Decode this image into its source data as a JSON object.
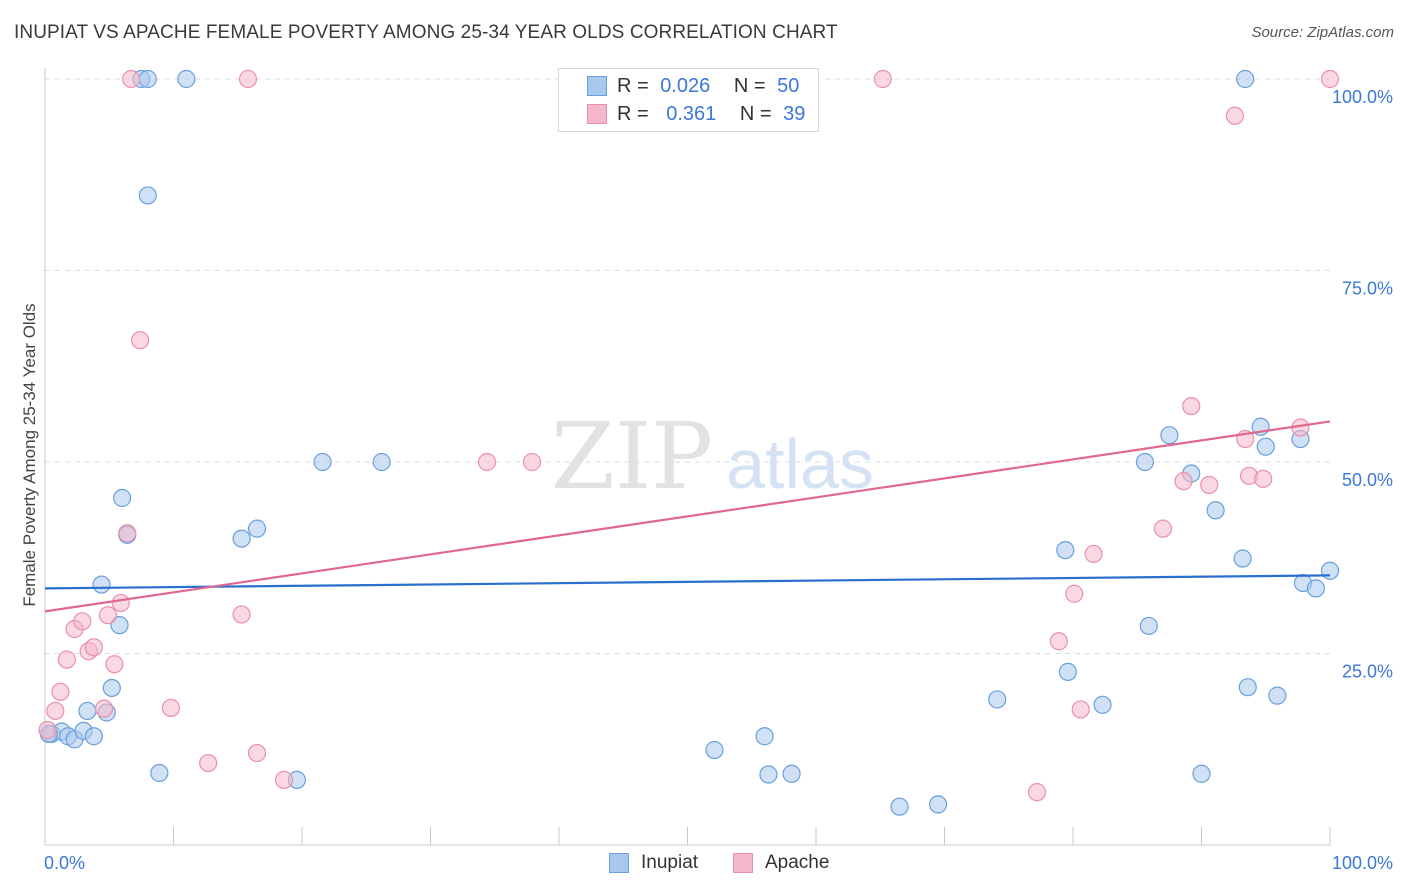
{
  "title": "INUPIAT VS APACHE FEMALE POVERTY AMONG 25-34 YEAR OLDS CORRELATION CHART",
  "source": "Source: ZipAtlas.com",
  "watermark": {
    "zip": "ZIP",
    "atlas": "atlas"
  },
  "legend_top": {
    "rows": [
      {
        "r_label": "R =",
        "r_value": "0.026",
        "n_label": "N =",
        "n_value": "50",
        "color": "#a9c8ef"
      },
      {
        "r_label": "R =",
        "r_value": "0.361",
        "n_label": "N =",
        "n_value": "39",
        "color": "#f5b8cb"
      }
    ]
  },
  "legend_bottom": [
    {
      "label": "Inupiat",
      "color": "#a9c8ef"
    },
    {
      "label": "Apache",
      "color": "#f5b8cb"
    }
  ],
  "chart_data": {
    "type": "scatter",
    "title": "INUPIAT VS APACHE FEMALE POVERTY AMONG 25-34 YEAR OLDS CORRELATION CHART",
    "xlabel": "",
    "ylabel": "Female Poverty Among 25-34 Year Olds",
    "xlim": [
      0,
      100
    ],
    "ylim": [
      0,
      100
    ],
    "x_tick_labels": [
      "0.0%",
      "100.0%"
    ],
    "y_tick_labels": [
      "25.0%",
      "50.0%",
      "75.0%",
      "100.0%"
    ],
    "y_ticks": [
      25,
      50,
      75,
      100
    ],
    "grid": true,
    "legend_position": "top-center",
    "colors": {
      "inupiat_fill": "#a9c8ef",
      "inupiat_edge": "#6a9fdc",
      "inupiat_line": "#2a6fd0",
      "apache_fill": "#f5b8cb",
      "apache_edge": "#e890ad",
      "apache_line": "#e0688f",
      "axis_label": "#3b78d8"
    },
    "series": [
      {
        "name": "Inupiat",
        "trend": {
          "x": [
            0,
            100
          ],
          "y": [
            33.5,
            35.2
          ]
        },
        "points": [
          [
            0.5,
            14.5
          ],
          [
            1.3,
            14.8
          ],
          [
            1.8,
            14.2
          ],
          [
            2.3,
            13.8
          ],
          [
            3.0,
            14.9
          ],
          [
            3.3,
            17.5
          ],
          [
            3.8,
            14.2
          ],
          [
            4.4,
            34.0
          ],
          [
            4.8,
            17.3
          ],
          [
            5.2,
            20.5
          ],
          [
            5.8,
            28.7
          ],
          [
            6.0,
            45.3
          ],
          [
            6.4,
            40.5
          ],
          [
            7.5,
            100.0
          ],
          [
            8.0,
            100.0
          ],
          [
            8.0,
            84.8
          ],
          [
            8.9,
            9.4
          ],
          [
            11.0,
            100.0
          ],
          [
            15.3,
            40.0
          ],
          [
            16.5,
            41.3
          ],
          [
            19.6,
            8.5
          ],
          [
            21.6,
            50.0
          ],
          [
            26.2,
            50.0
          ],
          [
            52.1,
            12.4
          ],
          [
            56.0,
            14.2
          ],
          [
            56.3,
            9.2
          ],
          [
            58.1,
            9.3
          ],
          [
            66.5,
            5.0
          ],
          [
            69.5,
            5.3
          ],
          [
            74.1,
            19.0
          ],
          [
            79.4,
            38.5
          ],
          [
            79.6,
            22.6
          ],
          [
            82.3,
            18.3
          ],
          [
            85.6,
            50.0
          ],
          [
            85.9,
            28.6
          ],
          [
            87.5,
            53.5
          ],
          [
            89.2,
            48.5
          ],
          [
            90.0,
            9.3
          ],
          [
            91.1,
            43.7
          ],
          [
            93.2,
            37.4
          ],
          [
            93.4,
            100.0
          ],
          [
            93.6,
            20.6
          ],
          [
            94.6,
            54.6
          ],
          [
            95.0,
            52.0
          ],
          [
            95.9,
            19.5
          ],
          [
            97.7,
            53.0
          ],
          [
            97.9,
            34.2
          ],
          [
            98.9,
            33.5
          ],
          [
            100.0,
            35.8
          ],
          [
            0.3,
            14.5
          ]
        ]
      },
      {
        "name": "Apache",
        "trend": {
          "x": [
            0,
            100
          ],
          "y": [
            30.5,
            55.3
          ]
        },
        "points": [
          [
            0.2,
            15.0
          ],
          [
            0.8,
            17.5
          ],
          [
            1.2,
            20.0
          ],
          [
            1.7,
            24.2
          ],
          [
            2.3,
            28.2
          ],
          [
            2.9,
            29.2
          ],
          [
            3.4,
            25.3
          ],
          [
            3.8,
            25.8
          ],
          [
            4.6,
            17.8
          ],
          [
            4.9,
            30.0
          ],
          [
            5.4,
            23.6
          ],
          [
            5.9,
            31.6
          ],
          [
            6.4,
            40.7
          ],
          [
            6.7,
            100.0
          ],
          [
            7.4,
            65.9
          ],
          [
            9.8,
            17.9
          ],
          [
            12.7,
            10.7
          ],
          [
            15.3,
            30.1
          ],
          [
            15.8,
            100.0
          ],
          [
            16.5,
            12.0
          ],
          [
            18.6,
            8.5
          ],
          [
            34.4,
            50.0
          ],
          [
            37.9,
            50.0
          ],
          [
            65.2,
            100.0
          ],
          [
            77.2,
            6.9
          ],
          [
            78.9,
            26.6
          ],
          [
            80.1,
            32.8
          ],
          [
            80.6,
            17.7
          ],
          [
            81.6,
            38.0
          ],
          [
            87.0,
            41.3
          ],
          [
            88.6,
            47.5
          ],
          [
            89.2,
            57.3
          ],
          [
            90.6,
            47.0
          ],
          [
            92.6,
            95.2
          ],
          [
            93.4,
            53.0
          ],
          [
            93.7,
            48.2
          ],
          [
            94.8,
            47.8
          ],
          [
            97.7,
            54.5
          ],
          [
            100.0,
            100.0
          ]
        ]
      }
    ]
  }
}
